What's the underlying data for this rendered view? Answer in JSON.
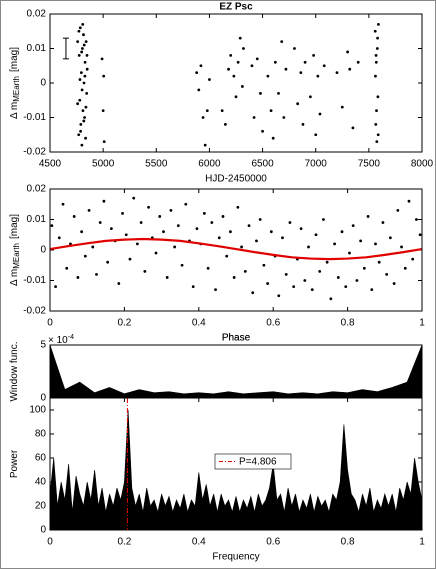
{
  "chart_data": [
    {
      "type": "scatter",
      "title": "EZ Psc",
      "xlabel": "HJD-2450000",
      "ylabel": "Δ m",
      "ylabel_sub": "MEarth",
      "ylabel_unit": "[mag]",
      "color": "#000000",
      "xlim": [
        4500,
        8000
      ],
      "xticks": [
        4500,
        5000,
        5500,
        6000,
        6500,
        7000,
        7500,
        8000
      ],
      "ylim": [
        -0.02,
        0.02
      ],
      "yticks": [
        -0.02,
        -0.01,
        0,
        0.01,
        0.02
      ],
      "errorbar": {
        "x": 4650,
        "y": 0.01,
        "error": 0.003
      },
      "x": [
        4760,
        4770,
        4775,
        4780,
        4785,
        4790,
        4795,
        4800,
        4805,
        4810,
        4815,
        4820,
        4825,
        4830,
        4835,
        4840,
        4845,
        4850,
        4760,
        4772,
        4788,
        4798,
        4808,
        4818,
        4828,
        4838,
        4848,
        4782,
        4802,
        4822,
        4990,
        5000,
        5005,
        5010,
        5880,
        5900,
        5920,
        5940,
        5960,
        5980,
        6000,
        6120,
        6150,
        6180,
        6200,
        6230,
        6250,
        6270,
        6290,
        6310,
        6320,
        6400,
        6420,
        6450,
        6480,
        6500,
        6550,
        6580,
        6600,
        6620,
        6650,
        6680,
        6700,
        6720,
        6800,
        6830,
        6860,
        6880,
        6900,
        6950,
        6980,
        7000,
        7020,
        7040,
        7080,
        7200,
        7250,
        7300,
        7320,
        7350,
        7400,
        7560,
        7565,
        7570,
        7575,
        7580,
        7585,
        7590,
        7562,
        7572,
        7582,
        7588,
        7568
      ],
      "values": [
        0.012,
        -0.015,
        0.008,
        -0.005,
        0.016,
        -0.012,
        0.003,
        -0.018,
        0.01,
        -0.008,
        0.014,
        0.0,
        -0.01,
        0.006,
        -0.016,
        0.012,
        -0.003,
        0.004,
        -0.006,
        0.015,
        -0.014,
        0.009,
        0.017,
        -0.011,
        0.002,
        -0.007,
        0.008,
        0.001,
        -0.002,
        0.011,
        0.007,
        -0.008,
        0.002,
        -0.017,
        0.003,
        -0.002,
        0.005,
        -0.01,
        -0.018,
        -0.008,
        0.001,
        -0.008,
        -0.012,
        0.004,
        0.008,
        0.002,
        -0.004,
        0.006,
        0.013,
        -0.001,
        0.01,
        0.005,
        -0.01,
        0.007,
        -0.003,
        -0.014,
        0.002,
        -0.008,
        -0.016,
        0.006,
        -0.003,
        0.012,
        -0.01,
        0.004,
        0.01,
        -0.006,
        0.003,
        -0.012,
        0.006,
        -0.004,
        0.008,
        -0.015,
        0.002,
        -0.009,
        0.005,
        0.003,
        -0.007,
        0.009,
        0.004,
        -0.013,
        0.006,
        0.015,
        -0.012,
        0.006,
        -0.017,
        0.01,
        -0.004,
        0.017,
        0.002,
        -0.008,
        0.013,
        -0.015,
        0.008
      ]
    },
    {
      "type": "scatter",
      "xlabel": "Phase",
      "ylabel": "Δ m",
      "ylabel_sub": "MEarth",
      "ylabel_unit": "[mag]",
      "color": "#000000",
      "xlim": [
        0,
        1
      ],
      "xticks": [
        0,
        0.2,
        0.4,
        0.6,
        0.8,
        1
      ],
      "ylim": [
        -0.02,
        0.02
      ],
      "yticks": [
        -0.02,
        -0.01,
        0,
        0.01,
        0.02
      ],
      "x": [
        0.005,
        0.015,
        0.025,
        0.035,
        0.045,
        0.055,
        0.065,
        0.075,
        0.085,
        0.095,
        0.105,
        0.115,
        0.125,
        0.135,
        0.145,
        0.155,
        0.165,
        0.175,
        0.185,
        0.195,
        0.205,
        0.215,
        0.225,
        0.235,
        0.245,
        0.255,
        0.265,
        0.275,
        0.285,
        0.295,
        0.305,
        0.315,
        0.325,
        0.335,
        0.345,
        0.355,
        0.365,
        0.375,
        0.385,
        0.395,
        0.405,
        0.415,
        0.425,
        0.435,
        0.445,
        0.455,
        0.465,
        0.475,
        0.485,
        0.495,
        0.505,
        0.515,
        0.525,
        0.535,
        0.545,
        0.555,
        0.565,
        0.575,
        0.585,
        0.595,
        0.605,
        0.615,
        0.625,
        0.635,
        0.645,
        0.655,
        0.665,
        0.675,
        0.685,
        0.695,
        0.705,
        0.715,
        0.725,
        0.735,
        0.745,
        0.755,
        0.765,
        0.775,
        0.785,
        0.795,
        0.805,
        0.815,
        0.825,
        0.835,
        0.845,
        0.855,
        0.865,
        0.875,
        0.885,
        0.895,
        0.905,
        0.915,
        0.925,
        0.935,
        0.945,
        0.955,
        0.965,
        0.975,
        0.985,
        0.995
      ],
      "values": [
        0.008,
        -0.012,
        0.004,
        0.015,
        -0.006,
        0.002,
        0.011,
        -0.009,
        0.006,
        -0.002,
        0.013,
        0.001,
        -0.008,
        0.009,
        0.016,
        -0.004,
        0.007,
        0.003,
        -0.011,
        0.012,
        0.005,
        -0.003,
        0.017,
        0.002,
        0.009,
        -0.007,
        0.014,
        0.004,
        -0.001,
        0.011,
        0.006,
        -0.009,
        0.013,
        0.001,
        0.008,
        -0.005,
        0.015,
        0.003,
        -0.012,
        0.007,
        0.002,
        0.012,
        -0.006,
        0.009,
        -0.013,
        0.004,
        0.011,
        -0.002,
        0.006,
        -0.009,
        0.014,
        0.001,
        -0.007,
        0.008,
        -0.014,
        0.003,
        0.01,
        -0.005,
        -0.011,
        0.006,
        -0.002,
        -0.015,
        0.004,
        -0.008,
        0.009,
        -0.012,
        -0.003,
        0.007,
        -0.01,
        0.001,
        -0.013,
        0.005,
        -0.007,
        0.01,
        -0.004,
        -0.016,
        0.002,
        -0.009,
        0.006,
        -0.012,
        -0.001,
        0.008,
        -0.01,
        0.003,
        -0.006,
        0.011,
        -0.013,
        0.002,
        -0.004,
        0.009,
        -0.008,
        0.004,
        -0.011,
        0.013,
        0.001,
        -0.006,
        0.016,
        -0.003,
        0.01,
        0.005
      ],
      "fit": {
        "color": "#e00000",
        "x": [
          0,
          0.05,
          0.1,
          0.15,
          0.2,
          0.25,
          0.3,
          0.35,
          0.4,
          0.45,
          0.5,
          0.55,
          0.6,
          0.65,
          0.7,
          0.75,
          0.8,
          0.85,
          0.9,
          0.95,
          1
        ],
        "values": [
          0.0003,
          0.0013,
          0.0022,
          0.003,
          0.0034,
          0.0036,
          0.0034,
          0.003,
          0.0022,
          0.0013,
          0.0003,
          -0.0007,
          -0.0016,
          -0.0024,
          -0.0028,
          -0.003,
          -0.0028,
          -0.0024,
          -0.0016,
          -0.0007,
          0.0003
        ]
      }
    },
    {
      "type": "area",
      "title": "Phase",
      "ylabel": "Window func.",
      "yexponent": "× 10",
      "yexponent_power": "-4",
      "color": "#000000",
      "xlim": [
        0,
        1
      ],
      "ylim": [
        0,
        0.0005
      ],
      "yticks": [
        0,
        {
          "value": 0.0005,
          "label": "5"
        }
      ],
      "x": [
        0,
        0.04,
        0.08,
        0.12,
        0.16,
        0.2,
        0.24,
        0.28,
        0.32,
        0.36,
        0.4,
        0.44,
        0.48,
        0.52,
        0.56,
        0.6,
        0.64,
        0.68,
        0.72,
        0.76,
        0.8,
        0.84,
        0.88,
        0.92,
        0.96,
        1
      ],
      "values": [
        0.0005,
        8e-05,
        0.00015,
        5e-05,
        0.0001,
        4e-05,
        8e-05,
        5e-05,
        6e-05,
        4e-05,
        5e-05,
        4e-05,
        6e-05,
        4e-05,
        5e-05,
        6e-05,
        4e-05,
        5e-05,
        4e-05,
        6e-05,
        5e-05,
        8e-05,
        6e-05,
        0.0001,
        0.00015,
        0.0005
      ]
    },
    {
      "type": "area",
      "xlabel": "Frequency",
      "ylabel": "Power",
      "color": "#000000",
      "xlim": [
        0,
        1
      ],
      "xticks": [
        0,
        0.2,
        0.4,
        0.6,
        0.8,
        1
      ],
      "ylim": [
        0,
        110
      ],
      "yticks": [
        0,
        20,
        40,
        60,
        80,
        100
      ],
      "marker": {
        "x": 0.2081,
        "label": "P=4.806",
        "color": "#e00000"
      },
      "x": [
        0,
        0.01,
        0.02,
        0.03,
        0.04,
        0.05,
        0.06,
        0.07,
        0.08,
        0.09,
        0.1,
        0.11,
        0.12,
        0.13,
        0.14,
        0.15,
        0.16,
        0.17,
        0.18,
        0.19,
        0.2,
        0.21,
        0.22,
        0.23,
        0.24,
        0.25,
        0.26,
        0.27,
        0.28,
        0.29,
        0.3,
        0.31,
        0.32,
        0.33,
        0.34,
        0.35,
        0.36,
        0.37,
        0.38,
        0.39,
        0.4,
        0.41,
        0.42,
        0.43,
        0.44,
        0.45,
        0.46,
        0.47,
        0.48,
        0.49,
        0.5,
        0.51,
        0.52,
        0.53,
        0.54,
        0.55,
        0.56,
        0.57,
        0.58,
        0.59,
        0.6,
        0.61,
        0.62,
        0.63,
        0.64,
        0.65,
        0.66,
        0.67,
        0.68,
        0.69,
        0.7,
        0.71,
        0.72,
        0.73,
        0.74,
        0.75,
        0.76,
        0.77,
        0.78,
        0.79,
        0.8,
        0.81,
        0.82,
        0.83,
        0.84,
        0.85,
        0.86,
        0.87,
        0.88,
        0.89,
        0.9,
        0.91,
        0.92,
        0.93,
        0.94,
        0.95,
        0.96,
        0.97,
        0.98,
        0.99,
        1
      ],
      "values": [
        30,
        60,
        20,
        40,
        25,
        55,
        15,
        45,
        30,
        20,
        40,
        25,
        50,
        20,
        35,
        15,
        30,
        20,
        35,
        25,
        40,
        100,
        35,
        20,
        30,
        15,
        35,
        20,
        25,
        15,
        30,
        20,
        28,
        15,
        25,
        18,
        30,
        15,
        25,
        20,
        48,
        25,
        38,
        20,
        30,
        15,
        30,
        20,
        25,
        15,
        28,
        15,
        25,
        18,
        28,
        15,
        30,
        20,
        25,
        35,
        55,
        25,
        30,
        15,
        35,
        20,
        30,
        15,
        25,
        18,
        30,
        15,
        28,
        20,
        25,
        15,
        30,
        25,
        40,
        88,
        50,
        30,
        25,
        15,
        30,
        20,
        35,
        15,
        25,
        18,
        30,
        20,
        30,
        15,
        35,
        25,
        40,
        30,
        60,
        40,
        25
      ]
    }
  ]
}
